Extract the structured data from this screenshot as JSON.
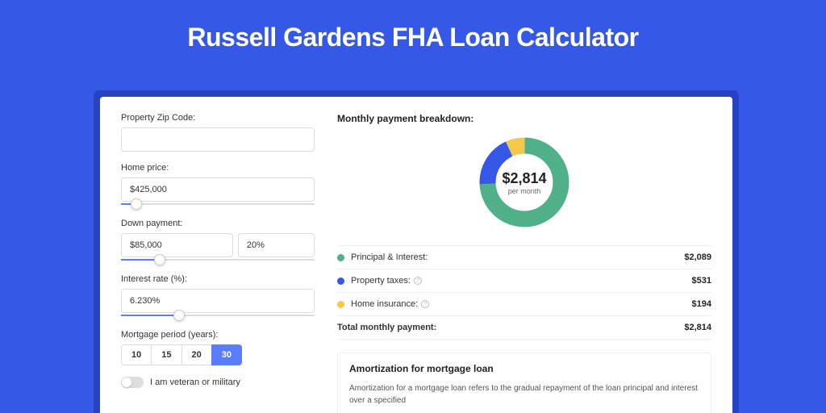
{
  "title": "Russell Gardens FHA Loan Calculator",
  "colors": {
    "page_bg": "#3558e6",
    "shadow_bg": "#2842c4",
    "accent": "#5a7cff",
    "principal": "#4fb08a",
    "taxes": "#3558e6",
    "insurance": "#f5c84b"
  },
  "form": {
    "zip_label": "Property Zip Code:",
    "zip_value": "",
    "home_price_label": "Home price:",
    "home_price_value": "$425,000",
    "home_price_slider_pct": 8,
    "down_payment_label": "Down payment:",
    "down_payment_value": "$85,000",
    "down_payment_pct": "20%",
    "down_payment_slider_pct": 20,
    "interest_label": "Interest rate (%):",
    "interest_value": "6.230%",
    "interest_slider_pct": 30,
    "period_label": "Mortgage period (years):",
    "periods": [
      "10",
      "15",
      "20",
      "30"
    ],
    "period_active_index": 3,
    "veteran_label": "I am veteran or military",
    "veteran_on": false
  },
  "breakdown": {
    "title": "Monthly payment breakdown:",
    "donut_amount": "$2,814",
    "donut_sub": "per month",
    "segments": {
      "principal_pct": 74.2,
      "taxes_pct": 18.9,
      "insurance_pct": 6.9
    },
    "rows": [
      {
        "key": "principal",
        "label": "Principal & Interest:",
        "value": "$2,089",
        "color": "#4fb08a",
        "info": false
      },
      {
        "key": "taxes",
        "label": "Property taxes:",
        "value": "$531",
        "color": "#3558e6",
        "info": true
      },
      {
        "key": "insurance",
        "label": "Home insurance:",
        "value": "$194",
        "color": "#f5c84b",
        "info": true
      }
    ],
    "total_label": "Total monthly payment:",
    "total_value": "$2,814"
  },
  "amortization": {
    "title": "Amortization for mortgage loan",
    "text": "Amortization for a mortgage loan refers to the gradual repayment of the loan principal and interest over a specified"
  }
}
